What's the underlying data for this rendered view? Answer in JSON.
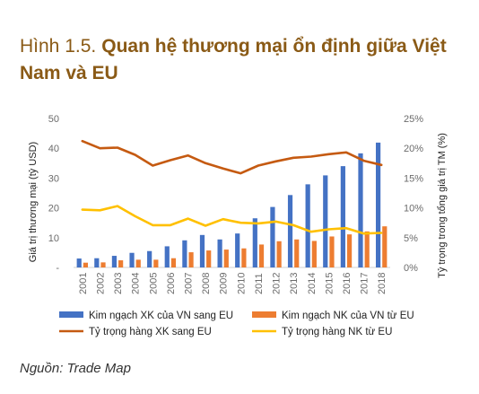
{
  "figure": {
    "prefix": "Hình 1.5.",
    "title": "Quan hệ thương mại ổn định giữa Việt Nam và EU",
    "source": "Nguồn: Trade Map"
  },
  "colors": {
    "title": "#8a5a16",
    "xk_bar": "#4472c4",
    "nk_bar": "#ed7d31",
    "xk_line": "#c55a11",
    "nk_line": "#ffc000"
  },
  "chart_data": {
    "type": "bar",
    "categories": [
      "2001",
      "2002",
      "2003",
      "2004",
      "2005",
      "2006",
      "2007",
      "2008",
      "2009",
      "2010",
      "2011",
      "2012",
      "2013",
      "2014",
      "2015",
      "2016",
      "2017",
      "2018"
    ],
    "ylabel": "Giá trị thương mại (tỷ USD)",
    "y2label": "Tỷ trọng trong tổng giá trị TM (%)",
    "ylim": [
      0,
      50
    ],
    "y2lim": [
      0,
      25
    ],
    "yticks": [
      "-",
      "10",
      "20",
      "30",
      "40",
      "50"
    ],
    "y2ticks": [
      "0%",
      "5%",
      "10%",
      "15%",
      "20%",
      "25%"
    ],
    "legend_position": "bottom",
    "series": [
      {
        "name": "Kim ngạch XK của VN sang EU",
        "kind": "bar",
        "axis": "left",
        "values": [
          3.0,
          3.1,
          3.9,
          4.9,
          5.5,
          7.1,
          9.1,
          10.9,
          9.4,
          11.4,
          16.5,
          20.3,
          24.3,
          27.9,
          30.9,
          34.0,
          38.3,
          41.9
        ]
      },
      {
        "name": "Kim ngạch NK của VN từ EU",
        "kind": "bar",
        "axis": "left",
        "values": [
          1.6,
          1.7,
          2.4,
          2.6,
          2.6,
          3.1,
          5.1,
          5.7,
          6.0,
          6.4,
          7.7,
          8.8,
          9.4,
          8.9,
          10.4,
          11.1,
          12.1,
          13.8
        ]
      },
      {
        "name": "Tỷ trọng hàng XK sang EU",
        "kind": "line",
        "axis": "right",
        "values": [
          21.2,
          20.0,
          20.1,
          18.9,
          17.1,
          18.0,
          18.8,
          17.5,
          16.6,
          15.8,
          17.1,
          17.8,
          18.4,
          18.6,
          19.0,
          19.3,
          17.9,
          17.2
        ]
      },
      {
        "name": "Tỷ trọng hàng NK từ EU",
        "kind": "line",
        "axis": "right",
        "values": [
          9.7,
          9.6,
          10.3,
          8.6,
          7.1,
          7.1,
          8.2,
          7.0,
          8.1,
          7.5,
          7.4,
          7.7,
          7.1,
          6.0,
          6.4,
          6.6,
          5.7,
          5.8
        ]
      }
    ]
  }
}
